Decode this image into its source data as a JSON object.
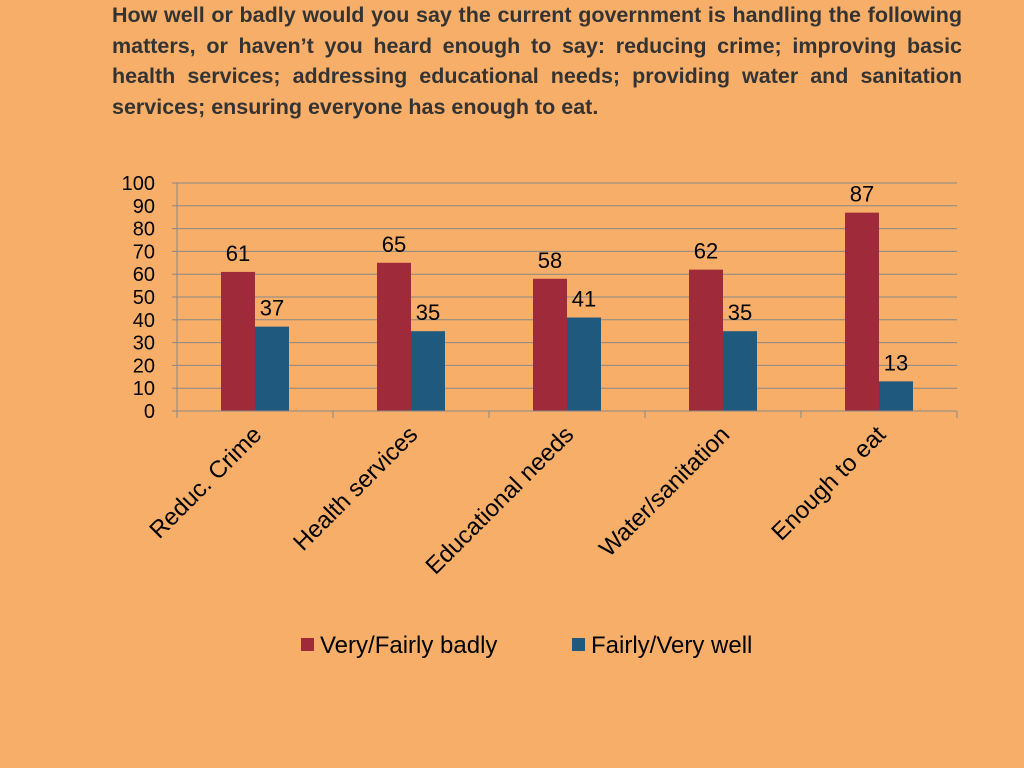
{
  "question": "How well or badly would you say the current government is handling the following matters, or haven’t you heard enough to say: reducing crime; improving basic health services; addressing educational needs; providing water and sanitation services; ensuring everyone has enough to eat.",
  "chart_data": {
    "type": "bar",
    "categories": [
      "Reduc. Crime",
      "Health services",
      "Educational needs",
      "Water/sanitation",
      "Enough to eat"
    ],
    "series": [
      {
        "name": "Very/Fairly badly",
        "values": [
          61,
          65,
          58,
          62,
          87
        ],
        "color": "#9E2A3A"
      },
      {
        "name": "Fairly/Very well",
        "values": [
          37,
          35,
          41,
          35,
          13
        ],
        "color": "#1F5A7E"
      }
    ],
    "ylim": [
      0,
      100
    ],
    "yticks": [
      0,
      10,
      20,
      30,
      40,
      50,
      60,
      70,
      80,
      90,
      100
    ],
    "grid": true,
    "legend_position": "bottom",
    "data_labels": true
  }
}
